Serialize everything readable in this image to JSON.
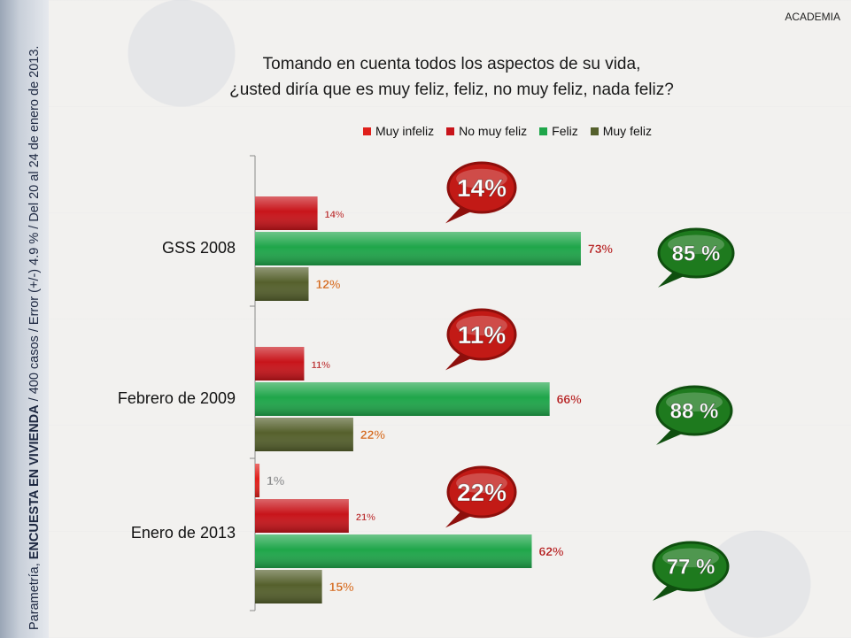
{
  "header": {
    "academia": "ACADEMIA"
  },
  "sidebar": {
    "prefix": "Parametría, ",
    "bold": "ENCUESTA EN VIVIENDA",
    "suffix": " / 400 casos / Error (+/-) 4.9 % / Del 20 al 24 de enero de 2013."
  },
  "colors": {
    "muy_infeliz": "#e0201b",
    "no_muy_feliz": "#c8141a",
    "feliz": "#1fa64a",
    "muy_feliz": "#55602c",
    "red_bubble": "#c21a16",
    "green_bubble": "#1e7a1e"
  },
  "chart_data": {
    "type": "bar",
    "orientation": "horizontal",
    "title": "Tomando en cuenta todos los aspectos de su vida, ¿usted diría que es muy feliz, feliz, no muy feliz, nada feliz?",
    "title_lines": [
      "Tomando en cuenta todos los aspectos de su vida,",
      "¿usted diría que es muy feliz, feliz, no muy feliz, nada feliz?"
    ],
    "legend": [
      "Muy infeliz",
      "No muy feliz",
      "Feliz",
      "Muy feliz"
    ],
    "legend_position": "top-right",
    "categories": [
      "GSS 2008",
      "Febrero de 2009",
      "Enero de 2013"
    ],
    "series": [
      {
        "name": "Muy infeliz",
        "values": [
          null,
          null,
          1
        ]
      },
      {
        "name": "No muy feliz",
        "values": [
          14,
          11,
          21
        ]
      },
      {
        "name": "Feliz",
        "values": [
          73,
          66,
          62
        ]
      },
      {
        "name": "Muy feliz",
        "values": [
          12,
          22,
          15
        ]
      }
    ],
    "value_labels": [
      [
        "",
        "14%",
        "73%",
        "12%"
      ],
      [
        "",
        "11%",
        "66%",
        "22%"
      ],
      [
        "1%",
        "21%",
        "62%",
        "15%"
      ]
    ],
    "unhappy_totals": [
      "14%",
      "11%",
      "22%"
    ],
    "happy_totals": [
      "85 %",
      "88 %",
      "77 %"
    ],
    "xlim": [
      0,
      100
    ]
  }
}
